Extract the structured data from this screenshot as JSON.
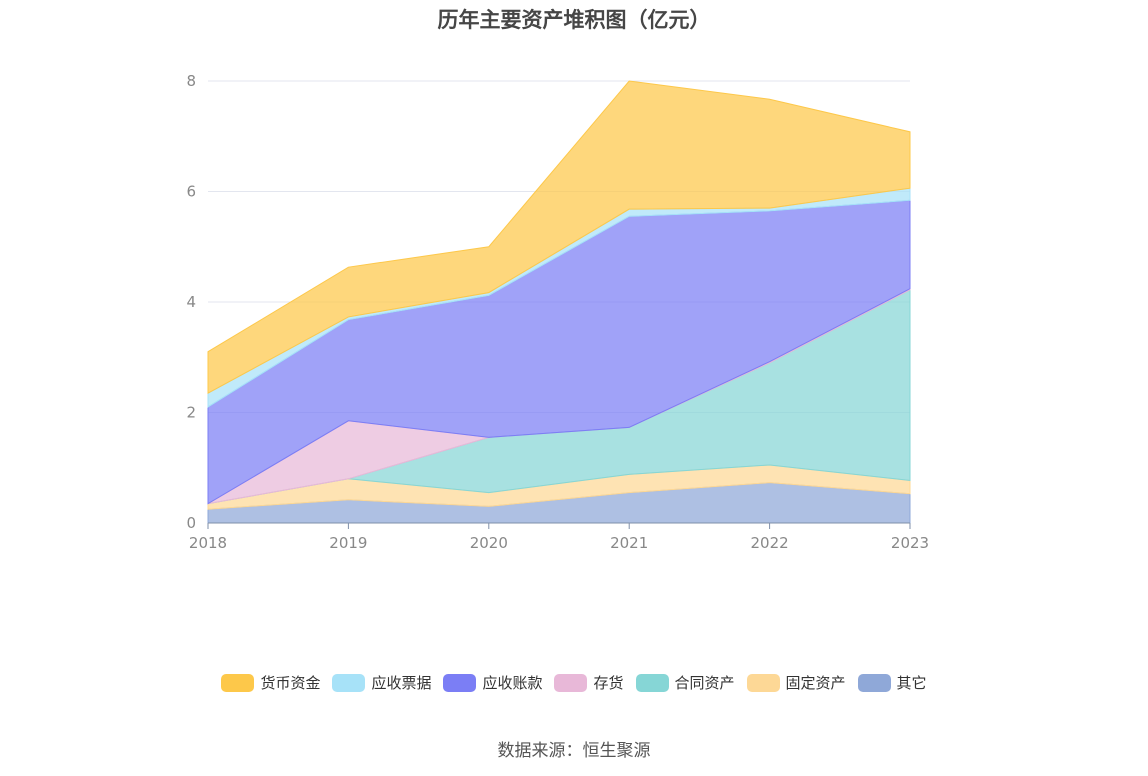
{
  "chart_data": {
    "type": "area",
    "stacked": true,
    "title": "历年主要资产堆积图（亿元）",
    "xlabel": "",
    "ylabel": "",
    "categories": [
      "2018",
      "2019",
      "2020",
      "2021",
      "2022",
      "2023"
    ],
    "ylim": [
      0,
      8
    ],
    "yticks": [
      0,
      2,
      4,
      6,
      8
    ],
    "grid": true,
    "legend_position": "bottom",
    "series": [
      {
        "name": "其它",
        "color": "#8fa8d8",
        "values": [
          0.25,
          0.42,
          0.3,
          0.55,
          0.73,
          0.53
        ]
      },
      {
        "name": "固定资产",
        "color": "#fdd896",
        "values": [
          0.1,
          0.38,
          0.25,
          0.33,
          0.32,
          0.24
        ]
      },
      {
        "name": "合同资产",
        "color": "#86d6d6",
        "values": [
          0.0,
          0.0,
          1.0,
          0.85,
          1.85,
          3.45
        ]
      },
      {
        "name": "存货",
        "color": "#e8b8d8",
        "values": [
          0.0,
          1.05,
          0.0,
          0.0,
          0.02,
          0.02
        ]
      },
      {
        "name": "应收账款",
        "color": "#7b7ef5",
        "values": [
          1.75,
          1.83,
          2.57,
          3.82,
          2.73,
          1.6
        ]
      },
      {
        "name": "应收票据",
        "color": "#a7e2f8",
        "values": [
          0.25,
          0.05,
          0.05,
          0.13,
          0.05,
          0.22
        ]
      },
      {
        "name": "货币资金",
        "color": "#fdc84a",
        "values": [
          0.75,
          0.9,
          0.83,
          2.32,
          1.97,
          1.02
        ]
      }
    ],
    "legend_order": [
      "货币资金",
      "应收票据",
      "应收账款",
      "存货",
      "合同资产",
      "固定资产",
      "其它"
    ]
  },
  "source": "数据来源：恒生聚源"
}
